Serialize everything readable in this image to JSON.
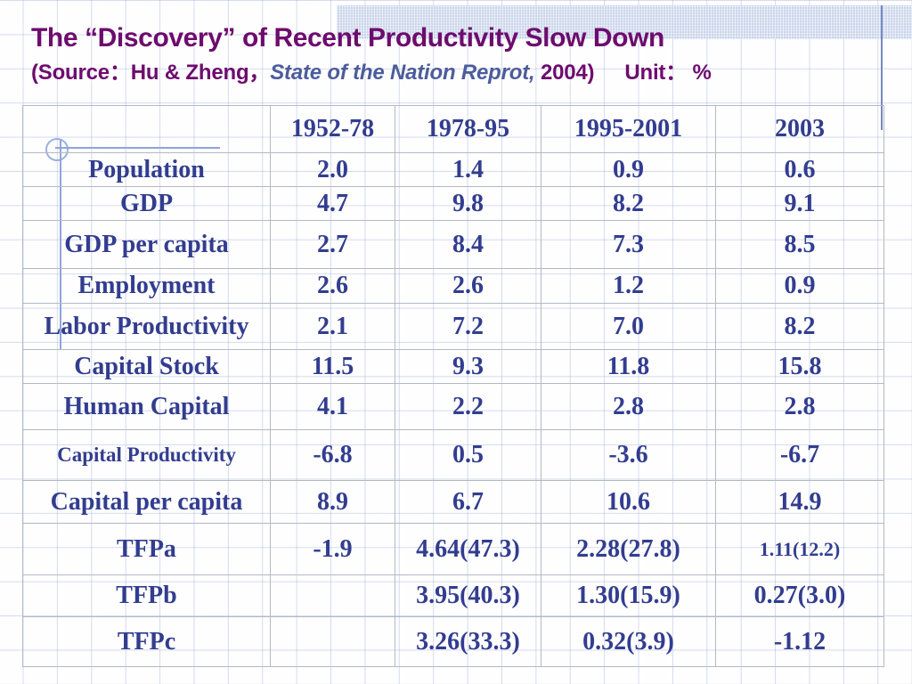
{
  "slide": {
    "title": "The “Discovery” of Recent Productivity Slow Down",
    "source_prefix": "(Source：Hu & Zheng，",
    "source_book_italic": "State of the Nation Reprot,",
    "source_suffix": " 2004)",
    "unit_label": "Unit： %",
    "colors": {
      "title_purple": "#6e0b6e",
      "book_blue": "#4c5c9c",
      "table_navy": "#323d8f",
      "grid_blue": "#8096d0",
      "band_blue": "#c9d4ea",
      "border_gray": "#b3b9c4"
    }
  },
  "table": {
    "columns": [
      "",
      "1952-78",
      "1978-95",
      "1995-2001",
      "2003"
    ],
    "rows": [
      {
        "label": "Population",
        "values": [
          "2.0",
          "1.4",
          "0.9",
          "0.6"
        ]
      },
      {
        "label": "GDP",
        "values": [
          "4.7",
          "9.8",
          "8.2",
          "9.1"
        ]
      },
      {
        "label": "GDP per capita",
        "values": [
          "2.7",
          "8.4",
          "7.3",
          "8.5"
        ]
      },
      {
        "label": "Employment",
        "values": [
          "2.6",
          "2.6",
          "1.2",
          "0.9"
        ]
      },
      {
        "label": "Labor Productivity",
        "values": [
          "2.1",
          "7.2",
          "7.0",
          "8.2"
        ]
      },
      {
        "label": "Capital Stock",
        "values": [
          "11.5",
          "9.3",
          "11.8",
          "15.8"
        ]
      },
      {
        "label": "Human Capital",
        "values": [
          "4.1",
          "2.2",
          "2.8",
          "2.8"
        ]
      },
      {
        "label": "Capital Productivity",
        "values": [
          "-6.8",
          "0.5",
          "-3.6",
          "-6.7"
        ],
        "label_small": true
      },
      {
        "label": "Capital per capita",
        "values": [
          "8.9",
          "6.7",
          "10.6",
          "14.9"
        ]
      },
      {
        "label": "TFPa",
        "values": [
          "-1.9",
          "4.64(47.3)",
          "2.28(27.8)",
          "1.11(12.2)"
        ],
        "small_value_indexes": [
          3
        ]
      },
      {
        "label": "TFPb",
        "values": [
          "",
          "3.95(40.3)",
          "1.30(15.9)",
          "0.27(3.0)"
        ]
      },
      {
        "label": "TFPc",
        "values": [
          "",
          "3.26(33.3)",
          "0.32(3.9)",
          "-1.12"
        ]
      }
    ]
  }
}
